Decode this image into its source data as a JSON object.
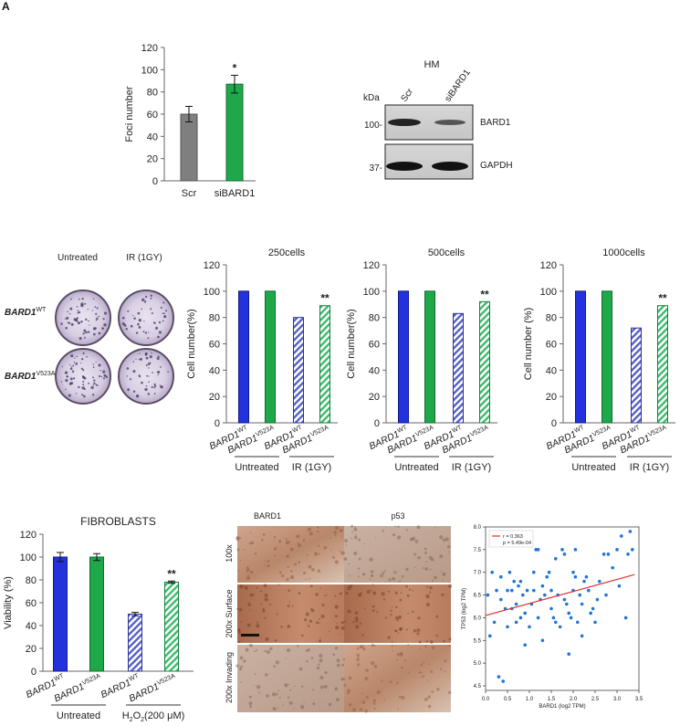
{
  "panel_letter": "A",
  "colors": {
    "blue": "#2233dd",
    "green": "#1ea84a",
    "gray": "#7f7f7f",
    "hatch_blue": "#6b74c9",
    "hatch_green": "#4fc27a",
    "fit_line": "#e03131",
    "scatter_point": "#1f77d4"
  },
  "western_blot": {
    "title": "HM",
    "kda_label": "kDa",
    "lanes": [
      "Scr",
      "siBARD1"
    ],
    "rows": [
      {
        "marker": "100-",
        "protein": "BARD1"
      },
      {
        "marker": "37-",
        "protein": "GAPDH"
      }
    ]
  },
  "histology": {
    "columns": [
      "BARD1",
      "p53"
    ],
    "rows": [
      "100x",
      "200x Surface",
      "200x Invading"
    ]
  },
  "chart_data": [
    {
      "type": "bar",
      "title": "",
      "categories": [
        "Scr",
        "siBARD1"
      ],
      "values": [
        60,
        87
      ],
      "errors": [
        7,
        8
      ],
      "colors": [
        "gray",
        "green"
      ],
      "significance": [
        "",
        "*"
      ],
      "ylabel": "Foci number",
      "ylim": [
        0,
        120
      ],
      "yticks": [
        "0",
        "20",
        "40",
        "60",
        "80",
        "100",
        "120"
      ]
    },
    {
      "type": "bar",
      "title": "250cells",
      "categories": [
        "BARD1WT",
        "BARD1V523A",
        "BARD1WT",
        "BARD1V523A"
      ],
      "values": [
        100,
        100,
        80,
        89
      ],
      "significance": [
        "",
        "",
        "",
        "**"
      ],
      "groups": [
        "Untreated",
        "IR (1GY)"
      ],
      "ylabel": "Cell number(%)",
      "ylim": [
        0,
        120
      ],
      "yticks": [
        "0",
        "20",
        "40",
        "60",
        "80",
        "100",
        "120"
      ]
    },
    {
      "type": "bar",
      "title": "500cells",
      "categories": [
        "BARD1WT",
        "BARD1V523A",
        "BARD1WT",
        "BARD1V523A"
      ],
      "values": [
        100,
        100,
        83,
        92
      ],
      "significance": [
        "",
        "",
        "",
        "**"
      ],
      "groups": [
        "Untreated",
        "IR (1GY)"
      ],
      "ylabel": "Cell number(%)",
      "ylim": [
        0,
        120
      ],
      "yticks": [
        "0",
        "20",
        "40",
        "60",
        "80",
        "100",
        "120"
      ]
    },
    {
      "type": "bar",
      "title": "1000cells",
      "categories": [
        "BARD1WT",
        "BARD1V523A",
        "BARD1WT",
        "BARD1V523A"
      ],
      "values": [
        100,
        100,
        72,
        89
      ],
      "significance": [
        "",
        "",
        "",
        "**"
      ],
      "groups": [
        "Untreated",
        "IR (1GY)"
      ],
      "ylabel": "Cell number (%)",
      "ylim": [
        0,
        120
      ],
      "yticks": [
        "0",
        "20",
        "40",
        "60",
        "80",
        "100",
        "120"
      ]
    },
    {
      "type": "bar",
      "title": "FIBROBLASTS",
      "categories": [
        "BARD1WT",
        "BARD1V523A",
        "BARD1WT",
        "BARD1V523A"
      ],
      "values": [
        100,
        100,
        50,
        78
      ],
      "errors": [
        4,
        3,
        1.5,
        1
      ],
      "significance": [
        "",
        "",
        "",
        "**"
      ],
      "groups": [
        "Untreated",
        "H2O2(200 μM)"
      ],
      "ylabel": "Viability (%)",
      "ylim": [
        0,
        120
      ],
      "yticks": [
        "0",
        "20",
        "40",
        "60",
        "80",
        "100",
        "120"
      ]
    },
    {
      "type": "scatter",
      "title": "",
      "xlabel": "BARD1 (log2 TPM)",
      "ylabel": "TP53 (log2 TPM)",
      "xlim": [
        0,
        3.5
      ],
      "ylim": [
        4.4,
        8.0
      ],
      "xticks": [
        "0.0",
        "0.5",
        "1.0",
        "1.5",
        "2.0",
        "2.5",
        "3.0",
        "3.5"
      ],
      "yticks": [
        "4.5",
        "5.0",
        "5.5",
        "6.0",
        "6.5",
        "7.0",
        "7.5",
        "8.0"
      ],
      "legend": [
        "r = 0.363",
        "p = 5.49e-04"
      ],
      "legend_position": "top-left",
      "fit_line": {
        "x": [
          0.0,
          3.4
        ],
        "y": [
          6.05,
          6.95
        ]
      },
      "points": [
        [
          0.05,
          6.5
        ],
        [
          0.1,
          5.6
        ],
        [
          0.15,
          7.0
        ],
        [
          0.2,
          5.9
        ],
        [
          0.25,
          6.6
        ],
        [
          0.3,
          4.7
        ],
        [
          0.35,
          6.9
        ],
        [
          0.35,
          6.4
        ],
        [
          0.4,
          4.6
        ],
        [
          0.45,
          6.2
        ],
        [
          0.5,
          6.6
        ],
        [
          0.5,
          5.8
        ],
        [
          0.55,
          7.0
        ],
        [
          0.6,
          6.6
        ],
        [
          0.6,
          6.2
        ],
        [
          0.65,
          6.8
        ],
        [
          0.7,
          6.3
        ],
        [
          0.7,
          5.9
        ],
        [
          0.75,
          6.7
        ],
        [
          0.8,
          6.8
        ],
        [
          0.8,
          6.0
        ],
        [
          0.85,
          6.5
        ],
        [
          0.9,
          6.1
        ],
        [
          0.9,
          5.4
        ],
        [
          0.95,
          6.6
        ],
        [
          1.0,
          5.8
        ],
        [
          1.05,
          6.3
        ],
        [
          1.1,
          7.0
        ],
        [
          1.1,
          6.6
        ],
        [
          1.15,
          7.5
        ],
        [
          1.2,
          7.5
        ],
        [
          1.2,
          6.0
        ],
        [
          1.25,
          6.4
        ],
        [
          1.3,
          6.7
        ],
        [
          1.3,
          5.5
        ],
        [
          1.35,
          6.5
        ],
        [
          1.4,
          6.9
        ],
        [
          1.45,
          7.0
        ],
        [
          1.5,
          6.6
        ],
        [
          1.5,
          6.2
        ],
        [
          1.55,
          6.0
        ],
        [
          1.6,
          7.3
        ],
        [
          1.6,
          5.9
        ],
        [
          1.65,
          6.5
        ],
        [
          1.7,
          5.8
        ],
        [
          1.75,
          7.5
        ],
        [
          1.8,
          7.4
        ],
        [
          1.8,
          6.4
        ],
        [
          1.85,
          6.3
        ],
        [
          1.9,
          6.1
        ],
        [
          1.9,
          5.2
        ],
        [
          1.95,
          6.0
        ],
        [
          2.0,
          7.0
        ],
        [
          2.0,
          6.6
        ],
        [
          2.05,
          7.5
        ],
        [
          2.05,
          6.9
        ],
        [
          2.1,
          5.9
        ],
        [
          2.15,
          6.5
        ],
        [
          2.2,
          6.3
        ],
        [
          2.2,
          5.6
        ],
        [
          2.25,
          6.8
        ],
        [
          2.3,
          6.9
        ],
        [
          2.35,
          6.6
        ],
        [
          2.4,
          6.1
        ],
        [
          2.45,
          6.2
        ],
        [
          2.5,
          5.9
        ],
        [
          2.55,
          6.4
        ],
        [
          2.6,
          6.8
        ],
        [
          2.7,
          7.4
        ],
        [
          2.75,
          6.5
        ],
        [
          2.8,
          7.4
        ],
        [
          2.9,
          7.1
        ],
        [
          3.0,
          7.5
        ],
        [
          3.05,
          6.7
        ],
        [
          3.1,
          7.8
        ],
        [
          3.2,
          6.0
        ],
        [
          3.25,
          7.4
        ],
        [
          3.3,
          7.9
        ],
        [
          3.35,
          7.5
        ]
      ]
    }
  ]
}
